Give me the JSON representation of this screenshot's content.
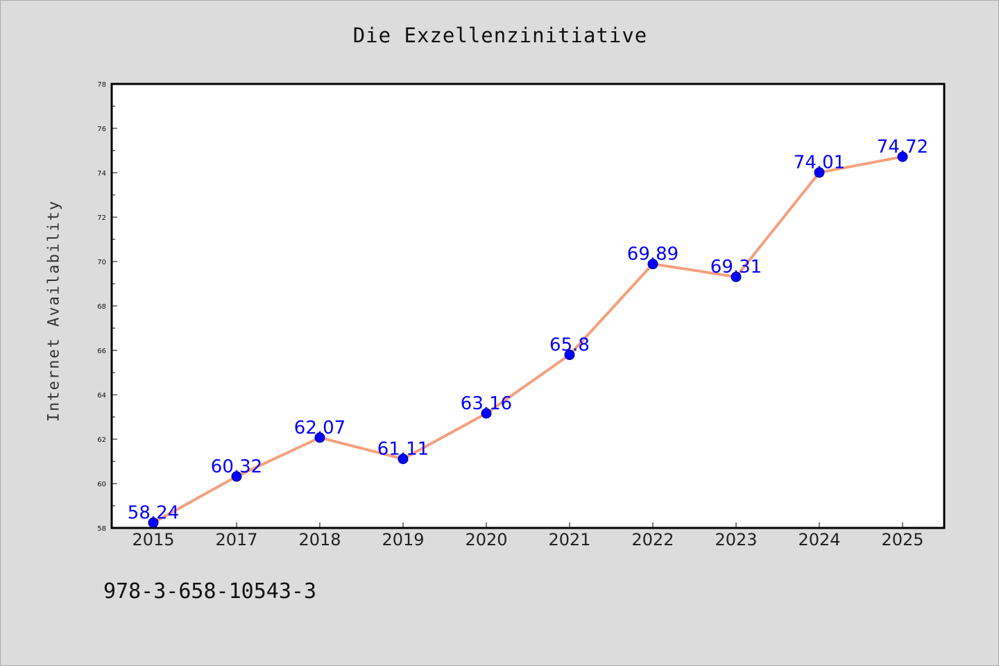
{
  "chart_data": {
    "type": "line",
    "title": "Die Exzellenzinitiative",
    "xlabel": "",
    "ylabel": "Internet Availability",
    "categories": [
      "2015",
      "2017",
      "2018",
      "2019",
      "2020",
      "2021",
      "2022",
      "2023",
      "2024",
      "2025"
    ],
    "series": [
      {
        "values": [
          58.24,
          60.32,
          62.07,
          61.11,
          63.16,
          65.8,
          69.89,
          69.31,
          74.01,
          74.72
        ],
        "data_labels": [
          "58.24",
          "60.32",
          "62.07",
          "61.11",
          "63.16",
          "65.8",
          "69.89",
          "69.31",
          "74.01",
          "74.72"
        ]
      }
    ],
    "ylim": [
      58,
      78
    ],
    "y_ticks": [
      "58",
      "60",
      "62",
      "64",
      "66",
      "68",
      "70",
      "72",
      "74",
      "76",
      "78"
    ],
    "grid": false,
    "colors": {
      "line": "#f4a07c",
      "marker": "#0000ff",
      "data_label": "#0000ff",
      "background": "#dcdcdc",
      "plot_background": "#ffffff"
    }
  },
  "footer_text": "978-3-658-10543-3"
}
